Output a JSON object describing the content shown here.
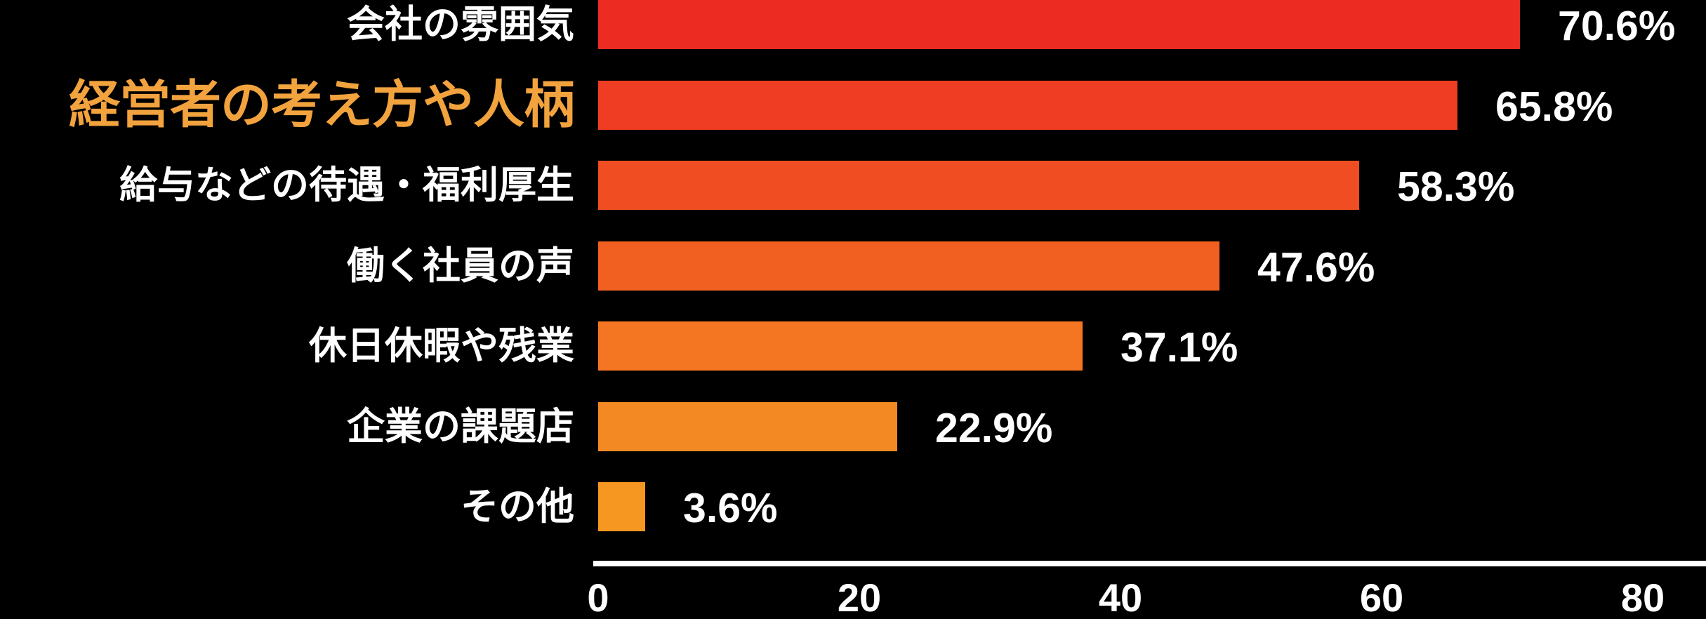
{
  "chart_data": {
    "type": "bar",
    "orientation": "horizontal",
    "title": "",
    "xlabel": "",
    "ylabel": "",
    "categories": [
      "会社の雰囲気",
      "経営者の考え方や人柄",
      "給与などの待遇・福利厚生",
      "働く社員の声",
      "休日休暇や残業",
      "企業の課題店",
      "その他"
    ],
    "values": [
      70.6,
      65.8,
      58.3,
      47.6,
      37.1,
      22.9,
      3.6
    ],
    "value_labels": [
      "70.6%",
      "65.8%",
      "58.3%",
      "47.6%",
      "37.1%",
      "22.9%",
      "3.6%"
    ],
    "bar_colors": [
      "#EC2B23",
      "#EE3D22",
      "#F04E22",
      "#F16021",
      "#F47522",
      "#F28922",
      "#F59720"
    ],
    "highlighted_category_index": 1,
    "highlight_color": "#F2A33E",
    "x_ticks": [
      "0",
      "20",
      "40",
      "60",
      "80"
    ],
    "x_tick_values": [
      0,
      20,
      40,
      60,
      80
    ],
    "xlim": [
      0,
      80
    ],
    "grid": false,
    "legend": "none",
    "background_color": "#000000",
    "text_color": "#FFFFFF",
    "axis_line_color": "#FFFFFF"
  }
}
